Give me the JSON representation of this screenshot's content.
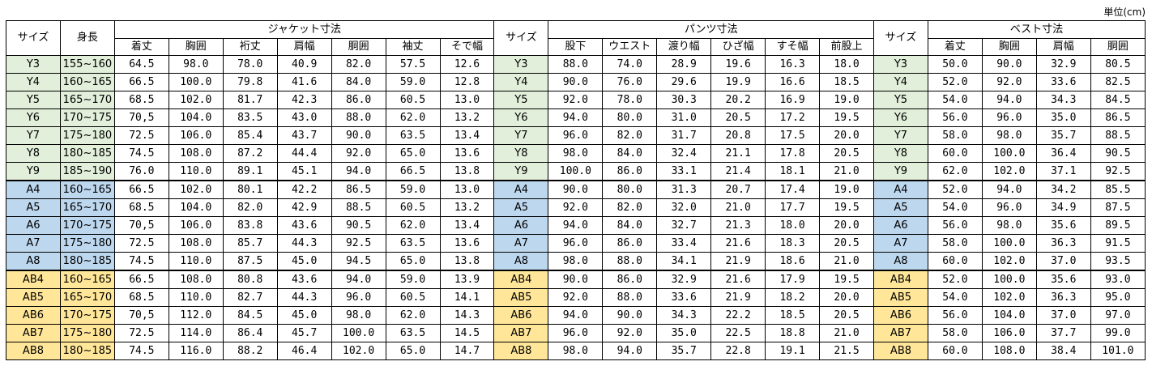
{
  "unit": "単位(cm)",
  "table": {
    "size_header": "サイズ",
    "height_header": "身長",
    "sections": [
      {
        "title": "ジャケット寸法",
        "columns": [
          "着丈",
          "胸囲",
          "裄丈",
          "肩幅",
          "胴囲",
          "袖丈",
          "そで幅"
        ]
      },
      {
        "title": "パンツ寸法",
        "columns": [
          "股下",
          "ウエスト",
          "渡り幅",
          "ひざ幅",
          "すそ幅",
          "前股上"
        ]
      },
      {
        "title": "ベスト寸法",
        "columns": [
          "着丈",
          "胸囲",
          "肩幅",
          "胴囲"
        ]
      }
    ],
    "row_groups": [
      {
        "color": "#e2efda",
        "rows": [
          {
            "size": "Y3",
            "height": "155~160",
            "cells": [
              [
                "64.5",
                "98.0",
                "78.0",
                "40.9",
                "82.0",
                "57.5",
                "12.6"
              ],
              [
                "88.0",
                "74.0",
                "28.9",
                "19.6",
                "16.3",
                "18.0"
              ],
              [
                "50.0",
                "90.0",
                "32.9",
                "80.5"
              ]
            ]
          },
          {
            "size": "Y4",
            "height": "160~165",
            "cells": [
              [
                "66.5",
                "100.0",
                "79.8",
                "41.6",
                "84.0",
                "59.0",
                "12.8"
              ],
              [
                "90.0",
                "76.0",
                "29.6",
                "19.9",
                "16.6",
                "18.5"
              ],
              [
                "52.0",
                "92.0",
                "33.6",
                "82.5"
              ]
            ]
          },
          {
            "size": "Y5",
            "height": "165~170",
            "cells": [
              [
                "68.5",
                "102.0",
                "81.7",
                "42.3",
                "86.0",
                "60.5",
                "13.0"
              ],
              [
                "92.0",
                "78.0",
                "30.3",
                "20.2",
                "16.9",
                "19.0"
              ],
              [
                "54.0",
                "94.0",
                "34.3",
                "84.5"
              ]
            ]
          },
          {
            "size": "Y6",
            "height": "170~175",
            "cells": [
              [
                "70,5",
                "104.0",
                "83.5",
                "43.0",
                "88.0",
                "62.0",
                "13.2"
              ],
              [
                "94.0",
                "80.0",
                "31.0",
                "20.5",
                "17.2",
                "19.5"
              ],
              [
                "56.0",
                "96.0",
                "35.0",
                "86.5"
              ]
            ]
          },
          {
            "size": "Y7",
            "height": "175~180",
            "cells": [
              [
                "72.5",
                "106.0",
                "85.4",
                "43.7",
                "90.0",
                "63.5",
                "13.4"
              ],
              [
                "96.0",
                "82.0",
                "31.7",
                "20.8",
                "17.5",
                "20.0"
              ],
              [
                "58.0",
                "98.0",
                "35.7",
                "88.5"
              ]
            ]
          },
          {
            "size": "Y8",
            "height": "180~185",
            "cells": [
              [
                "74.5",
                "108.0",
                "87.2",
                "44.4",
                "92.0",
                "65.0",
                "13.6"
              ],
              [
                "98.0",
                "84.0",
                "32.4",
                "21.1",
                "17.8",
                "20.5"
              ],
              [
                "60.0",
                "100.0",
                "36.4",
                "90.5"
              ]
            ]
          },
          {
            "size": "Y9",
            "height": "185~190",
            "cells": [
              [
                "76.0",
                "110.0",
                "89.1",
                "45.1",
                "94.0",
                "66.5",
                "13.8"
              ],
              [
                "100.0",
                "86.0",
                "33.1",
                "21.4",
                "18.1",
                "21.0"
              ],
              [
                "62.0",
                "102.0",
                "37.1",
                "92.5"
              ]
            ]
          }
        ]
      },
      {
        "color": "#bdd7ee",
        "rows": [
          {
            "size": "A4",
            "height": "160~165",
            "cells": [
              [
                "66.5",
                "102.0",
                "80.1",
                "42.2",
                "86.5",
                "59.0",
                "13.0"
              ],
              [
                "90.0",
                "80.0",
                "31.3",
                "20.7",
                "17.4",
                "19.0"
              ],
              [
                "52.0",
                "94.0",
                "34.2",
                "85.5"
              ]
            ]
          },
          {
            "size": "A5",
            "height": "165~170",
            "cells": [
              [
                "68.5",
                "104.0",
                "82.0",
                "42.9",
                "88.5",
                "60.5",
                "13.2"
              ],
              [
                "92.0",
                "82.0",
                "32.0",
                "21.0",
                "17.7",
                "19.5"
              ],
              [
                "54.0",
                "96.0",
                "34.9",
                "87.5"
              ]
            ]
          },
          {
            "size": "A6",
            "height": "170~175",
            "cells": [
              [
                "70,5",
                "106.0",
                "83.8",
                "43.6",
                "90.5",
                "62.0",
                "13.4"
              ],
              [
                "94.0",
                "84.0",
                "32.7",
                "21.3",
                "18.0",
                "20.0"
              ],
              [
                "56.0",
                "98.0",
                "35.6",
                "89.5"
              ]
            ]
          },
          {
            "size": "A7",
            "height": "175~180",
            "cells": [
              [
                "72.5",
                "108.0",
                "85.7",
                "44.3",
                "92.5",
                "63.5",
                "13.6"
              ],
              [
                "96.0",
                "86.0",
                "33.4",
                "21.6",
                "18.3",
                "20.5"
              ],
              [
                "58.0",
                "100.0",
                "36.3",
                "91.5"
              ]
            ]
          },
          {
            "size": "A8",
            "height": "180~185",
            "cells": [
              [
                "74.5",
                "110.0",
                "87.5",
                "45.0",
                "94.5",
                "65.0",
                "13.8"
              ],
              [
                "98.0",
                "88.0",
                "34.1",
                "21.9",
                "18.6",
                "21.0"
              ],
              [
                "60.0",
                "102.0",
                "37.0",
                "93.5"
              ]
            ]
          }
        ]
      },
      {
        "color": "#ffe699",
        "rows": [
          {
            "size": "AB4",
            "height": "160~165",
            "cells": [
              [
                "66.5",
                "108.0",
                "80.8",
                "43.6",
                "94.0",
                "59.0",
                "13.9"
              ],
              [
                "90.0",
                "86.0",
                "32.9",
                "21.6",
                "17.9",
                "19.5"
              ],
              [
                "52.0",
                "100.0",
                "35.6",
                "93.0"
              ]
            ]
          },
          {
            "size": "AB5",
            "height": "165~170",
            "cells": [
              [
                "68.5",
                "110.0",
                "82.7",
                "44.3",
                "96.0",
                "60.5",
                "14.1"
              ],
              [
                "92.0",
                "88.0",
                "33.6",
                "21.9",
                "18.2",
                "20.0"
              ],
              [
                "54.0",
                "102.0",
                "36.3",
                "95.0"
              ]
            ]
          },
          {
            "size": "AB6",
            "height": "170~175",
            "cells": [
              [
                "70,5",
                "112.0",
                "84.5",
                "45.0",
                "98.0",
                "62.0",
                "14.3"
              ],
              [
                "94.0",
                "90.0",
                "34.3",
                "22.2",
                "18.5",
                "20.5"
              ],
              [
                "56.0",
                "104.0",
                "37.0",
                "97.0"
              ]
            ]
          },
          {
            "size": "AB7",
            "height": "175~180",
            "cells": [
              [
                "72.5",
                "114.0",
                "86.4",
                "45.7",
                "100.0",
                "63.5",
                "14.5"
              ],
              [
                "96.0",
                "92.0",
                "35.0",
                "22.5",
                "18.8",
                "21.0"
              ],
              [
                "58.0",
                "106.0",
                "37.7",
                "99.0"
              ]
            ]
          },
          {
            "size": "AB8",
            "height": "180~185",
            "cells": [
              [
                "74.5",
                "116.0",
                "88.2",
                "46.4",
                "102.0",
                "65.0",
                "14.7"
              ],
              [
                "98.0",
                "94.0",
                "35.7",
                "22.8",
                "19.1",
                "21.5"
              ],
              [
                "60.0",
                "108.0",
                "38.4",
                "101.0"
              ]
            ]
          }
        ]
      }
    ]
  }
}
